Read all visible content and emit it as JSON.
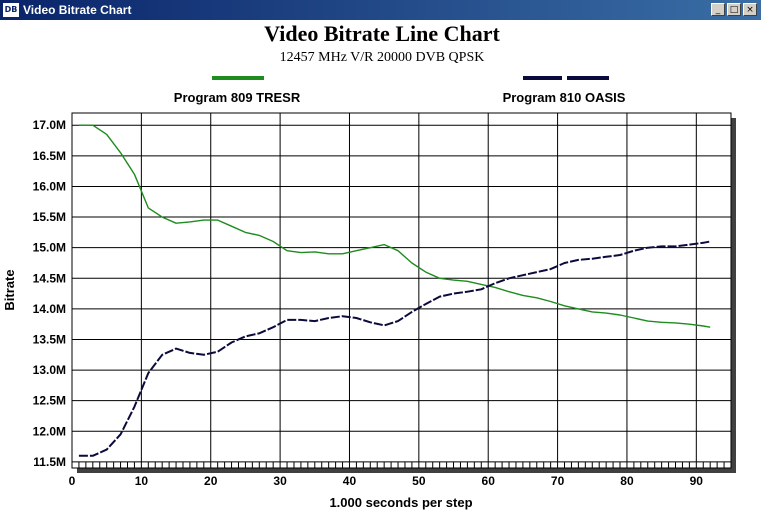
{
  "window": {
    "title": "Video Bitrate Chart",
    "icon_text": "DB",
    "controls": [
      "_",
      "□",
      "×"
    ]
  },
  "chart_data": {
    "type": "line",
    "title": "Video Bitrate Line Chart",
    "subtitle": "12457 MHz V/R 20000 DVB QPSK",
    "xlabel": "1.000 seconds per step",
    "ylabel": "Bitrate",
    "xlim": [
      0,
      95
    ],
    "ylim": [
      11.4,
      17.2
    ],
    "x_ticks": [
      0,
      10,
      20,
      30,
      40,
      50,
      60,
      70,
      80,
      90
    ],
    "y_ticks": [
      11.5,
      12.0,
      12.5,
      13.0,
      13.5,
      14.0,
      14.5,
      15.0,
      15.5,
      16.0,
      16.5,
      17.0
    ],
    "y_tick_labels": [
      "11.5M",
      "12.0M",
      "12.5M",
      "13.0M",
      "13.5M",
      "14.0M",
      "14.5M",
      "15.0M",
      "15.5M",
      "16.0M",
      "16.5M",
      "17.0M"
    ],
    "x_tick_labels": [
      "0",
      "10",
      "20",
      "30",
      "40",
      "50",
      "60",
      "70",
      "80",
      "90"
    ],
    "grid": true,
    "legend_placement": "top",
    "series": [
      {
        "name": "Program 809 TRESR",
        "color": "#1e8c1e",
        "x": [
          1,
          3,
          5,
          7,
          9,
          11,
          13,
          15,
          17,
          19,
          21,
          23,
          25,
          27,
          29,
          31,
          33,
          35,
          37,
          39,
          41,
          43,
          45,
          47,
          49,
          51,
          53,
          55,
          57,
          59,
          61,
          63,
          65,
          67,
          69,
          71,
          73,
          75,
          77,
          79,
          81,
          83,
          85,
          87,
          89,
          91,
          92
        ],
        "y": [
          17.0,
          17.0,
          16.85,
          16.55,
          16.2,
          15.65,
          15.5,
          15.4,
          15.42,
          15.45,
          15.45,
          15.35,
          15.25,
          15.2,
          15.1,
          14.95,
          14.92,
          14.93,
          14.9,
          14.9,
          14.95,
          15.0,
          15.05,
          14.95,
          14.75,
          14.6,
          14.5,
          14.47,
          14.45,
          14.4,
          14.35,
          14.28,
          14.22,
          14.18,
          14.12,
          14.05,
          14.0,
          13.95,
          13.93,
          13.9,
          13.85,
          13.8,
          13.78,
          13.77,
          13.75,
          13.72,
          13.7
        ]
      },
      {
        "name": "Program 810 OASIS",
        "color": "#0a0a3c",
        "x": [
          1,
          3,
          5,
          7,
          9,
          11,
          13,
          15,
          17,
          19,
          21,
          23,
          25,
          27,
          29,
          31,
          33,
          35,
          37,
          39,
          41,
          43,
          45,
          47,
          49,
          51,
          53,
          55,
          57,
          59,
          61,
          63,
          65,
          67,
          69,
          71,
          73,
          75,
          77,
          79,
          81,
          83,
          85,
          87,
          89,
          91,
          92
        ],
        "y": [
          11.6,
          11.6,
          11.7,
          11.95,
          12.4,
          12.95,
          13.25,
          13.35,
          13.28,
          13.25,
          13.3,
          13.45,
          13.55,
          13.6,
          13.7,
          13.82,
          13.82,
          13.8,
          13.85,
          13.88,
          13.85,
          13.78,
          13.73,
          13.8,
          13.95,
          14.08,
          14.2,
          14.25,
          14.28,
          14.32,
          14.42,
          14.5,
          14.55,
          14.6,
          14.65,
          14.75,
          14.8,
          14.82,
          14.85,
          14.88,
          14.95,
          15.0,
          15.02,
          15.02,
          15.05,
          15.08,
          15.1
        ]
      }
    ]
  }
}
